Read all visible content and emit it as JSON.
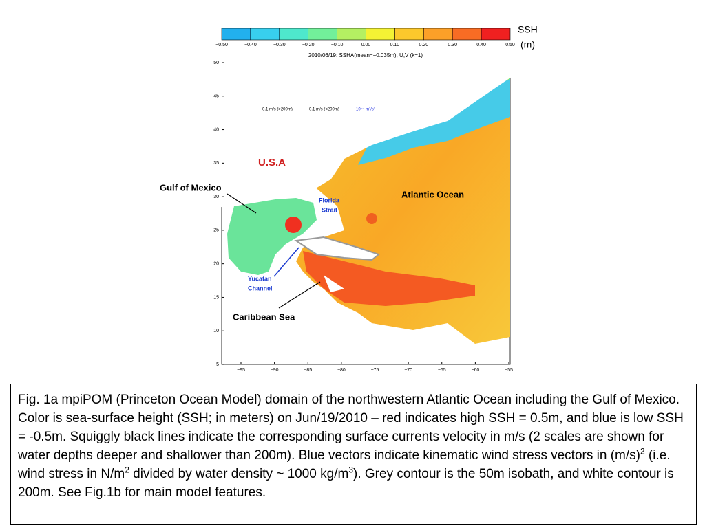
{
  "colorbar": {
    "title": "SSH",
    "unit": "(m)",
    "ticks": [
      "−0.50",
      "−0.40",
      "−0.30",
      "−0.20",
      "−0.10",
      "0.00",
      "0.10",
      "0.20",
      "0.30",
      "0.40",
      "0.50"
    ],
    "colors": [
      "#22b0ee",
      "#38cfee",
      "#4ee8cc",
      "#72f09a",
      "#b4f062",
      "#f4f234",
      "#fcc82c",
      "#fca028",
      "#f86c24",
      "#f02020"
    ]
  },
  "map": {
    "title": "2010/06/19: SSHA(mean=−0.035m), U,V (k=1)",
    "yticks": [
      "50",
      "45",
      "40",
      "35",
      "30",
      "25",
      "20",
      "15",
      "10",
      "5"
    ],
    "xticks": [
      "−95",
      "−90",
      "−85",
      "−80",
      "−75",
      "−70",
      "−65",
      "−60",
      "−55"
    ],
    "legend": [
      "0.1 m/s (>200m)",
      "0.1 m/s (<200m)",
      "10⁻⁴ m²/s²"
    ],
    "labels": {
      "usa": "U.S.A",
      "gulf": "Gulf of Mexico",
      "florida": [
        "Florida",
        "Strait"
      ],
      "atlantic": "Atlantic Ocean",
      "yucatan": [
        "Yucatan",
        "Channel"
      ],
      "caribbean": "Caribbean Sea"
    }
  },
  "caption": [
    "Fig.  1a mpiPOM (Princeton Ocean Model) domain of the northwestern Atlantic Ocean including the Gulf of Mexico. Color is sea-surface height (SSH; in meters) on Jun/19/2010 – red indicates high SSH = 0.5m, and blue is low SSH = -0.5m. Squiggly black lines indicate the corresponding surface currents velocity in m/s (2 scales are shown for water depths deeper and shallower than 200m). Blue vectors indicate kinematic wind stress vectors in (m/s)",
    "2",
    " (i.e. wind stress in N/m",
    "2",
    " divided by water density ~ 1000 kg/m",
    "3",
    "). Grey contour is the 50m isobath, and white contour is 200m.  See Fig.1b for main model features."
  ]
}
